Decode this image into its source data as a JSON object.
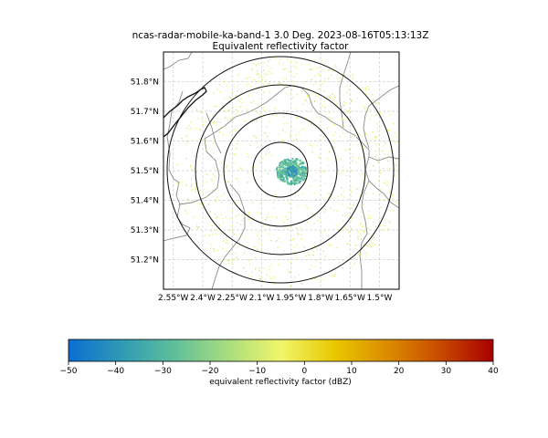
{
  "title_line1": "ncas-radar-mobile-ka-band-1 3.0 Deg. 2023-08-16T05:13:13Z",
  "title_line2": "Equivalent reflectivity factor",
  "map": {
    "lon_range": [
      -2.6,
      -1.4
    ],
    "lat_range": [
      51.1,
      51.9
    ],
    "radar_center": {
      "lon": -1.95,
      "lat": 51.5
    },
    "lat_ticks": [
      "51.2°N",
      "51.3°N",
      "51.4°N",
      "51.5°N",
      "51.6°N",
      "51.7°N",
      "51.8°N"
    ],
    "lat_tick_values": [
      51.2,
      51.3,
      51.4,
      51.5,
      51.6,
      51.7,
      51.8
    ],
    "lon_ticks": [
      "2.55°W",
      "2.4°W",
      "2.25°W",
      "2.1°W",
      "1.95°W",
      "1.8°W",
      "1.65°W",
      "1.5°W"
    ],
    "lon_tick_values": [
      -2.55,
      -2.4,
      -2.25,
      -2.1,
      -1.95,
      -1.8,
      -1.65,
      -1.5
    ],
    "gridlines": true,
    "range_rings_km": [
      10,
      20,
      30,
      40
    ]
  },
  "colorbar": {
    "label": "equivalent reflectivity factor (dBZ)",
    "min": -50,
    "max": 40,
    "ticks": [
      "−50",
      "−40",
      "−30",
      "−20",
      "−10",
      "0",
      "10",
      "20",
      "30",
      "40"
    ],
    "tick_values": [
      -50,
      -40,
      -30,
      -20,
      -10,
      0,
      10,
      20,
      30,
      40
    ],
    "colormap": [
      "#0a6ed1",
      "#2f9ab5",
      "#5fbf9a",
      "#a9dd7e",
      "#f0f66a",
      "#e9c800",
      "#dc8c00",
      "#c84a00",
      "#a80000"
    ]
  }
}
